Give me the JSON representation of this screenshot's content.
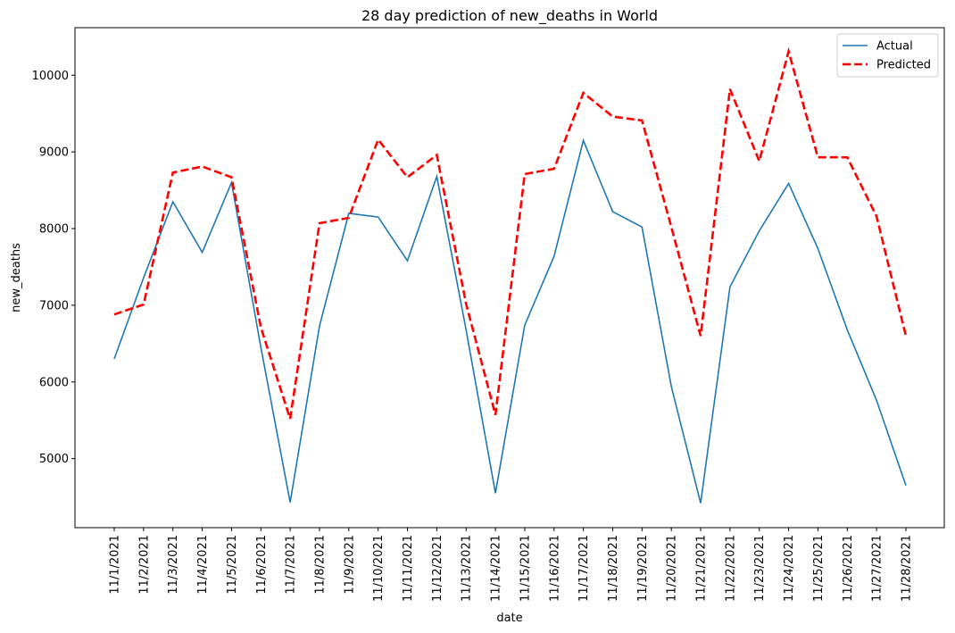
{
  "chart_data": {
    "type": "line",
    "title": "28 day prediction of new_deaths in World",
    "xlabel": "date",
    "ylabel": "new_deaths",
    "categories": [
      "11/1/2021",
      "11/2/2021",
      "11/3/2021",
      "11/4/2021",
      "11/5/2021",
      "11/6/2021",
      "11/7/2021",
      "11/8/2021",
      "11/9/2021",
      "11/10/2021",
      "11/11/2021",
      "11/12/2021",
      "11/13/2021",
      "11/14/2021",
      "11/15/2021",
      "11/16/2021",
      "11/17/2021",
      "11/18/2021",
      "11/19/2021",
      "11/20/2021",
      "11/21/2021",
      "11/22/2021",
      "11/23/2021",
      "11/24/2021",
      "11/25/2021",
      "11/26/2021",
      "11/27/2021",
      "11/28/2021"
    ],
    "yticks": [
      5000,
      6000,
      7000,
      8000,
      9000,
      10000
    ],
    "ylim": [
      4100,
      10620
    ],
    "grid": false,
    "legend_position": "top-right",
    "series": [
      {
        "name": "Actual",
        "color": "#1f77b4",
        "style": "solid",
        "values": [
          6300,
          7360,
          8350,
          7690,
          8600,
          6450,
          4430,
          6730,
          8200,
          8150,
          7580,
          8680,
          6680,
          4550,
          6740,
          7640,
          9150,
          8220,
          8020,
          5940,
          4420,
          7240,
          7970,
          8590,
          7740,
          6680,
          5760,
          4650
        ]
      },
      {
        "name": "Predicted",
        "color": "#ff0000",
        "style": "dashed",
        "values": [
          6880,
          7010,
          8730,
          8810,
          8670,
          6710,
          5520,
          8070,
          8140,
          9160,
          8670,
          8960,
          7020,
          5570,
          8710,
          8780,
          9770,
          9460,
          9410,
          8020,
          6600,
          9820,
          8880,
          10310,
          8930,
          8930,
          8160,
          6600
        ]
      }
    ]
  }
}
